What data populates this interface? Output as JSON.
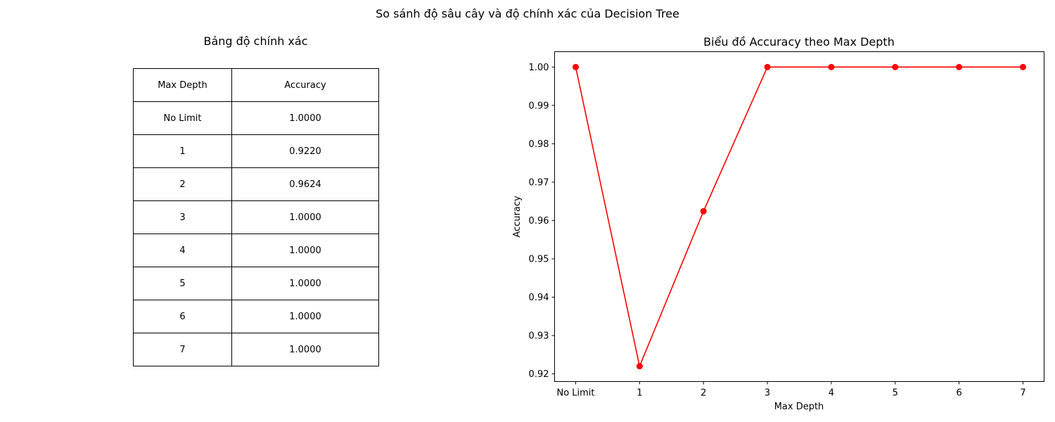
{
  "suptitle": "So sánh độ sâu cây và độ chính xác của Decision Tree",
  "table": {
    "title": "Bảng độ chính xác",
    "headers": [
      "Max Depth",
      "Accuracy"
    ],
    "rows": [
      [
        "No Limit",
        "1.0000"
      ],
      [
        "1",
        "0.9220"
      ],
      [
        "2",
        "0.9624"
      ],
      [
        "3",
        "1.0000"
      ],
      [
        "4",
        "1.0000"
      ],
      [
        "5",
        "1.0000"
      ],
      [
        "6",
        "1.0000"
      ],
      [
        "7",
        "1.0000"
      ]
    ]
  },
  "chart_data": {
    "type": "line",
    "title": "Biểu đồ Accuracy theo Max Depth",
    "xlabel": "Max Depth",
    "ylabel": "Accuracy",
    "categories": [
      "No Limit",
      "1",
      "2",
      "3",
      "4",
      "5",
      "6",
      "7"
    ],
    "series": [
      {
        "values": [
          1.0,
          0.922,
          0.9624,
          1.0,
          1.0,
          1.0,
          1.0,
          1.0
        ],
        "color": "#ff0000",
        "marker": "circle"
      }
    ],
    "ylim": [
      0.918,
      1.004
    ],
    "yticks": [
      "0.92",
      "0.93",
      "0.94",
      "0.95",
      "0.96",
      "0.97",
      "0.98",
      "0.99",
      "1.00"
    ],
    "grid": false
  }
}
